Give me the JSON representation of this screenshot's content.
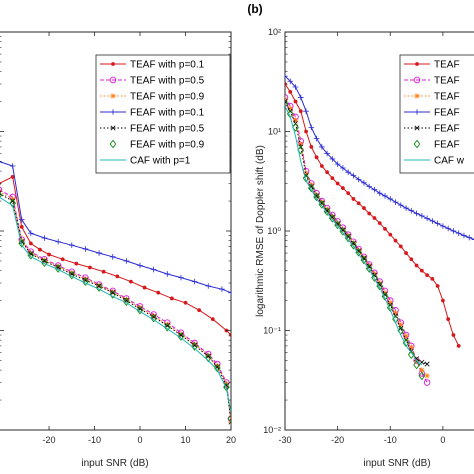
{
  "chart_data": [
    {
      "type": "line",
      "xlabel": "input SNR (dB)",
      "ylabel": "",
      "x_ticks": [
        "-20",
        "-10",
        "0",
        "10",
        "20"
      ],
      "xlim": [
        -31,
        20
      ],
      "ylog": true,
      "ylim": [
        0.01,
        100
      ],
      "grid": false,
      "legend_placement": "top-right",
      "series": [
        {
          "name": "TEAF with p=0.1",
          "color": "#d7191c",
          "marker": "dot",
          "line": "solid",
          "x": [
            -31,
            -28,
            -26,
            -24,
            -22,
            -20,
            -17,
            -14,
            -11,
            -8,
            -5,
            -2,
            1,
            4,
            7,
            10,
            13,
            16,
            19,
            20
          ],
          "y": [
            3,
            3.5,
            1.1,
            0.75,
            0.65,
            0.58,
            0.52,
            0.47,
            0.43,
            0.39,
            0.35,
            0.31,
            0.27,
            0.24,
            0.21,
            0.19,
            0.16,
            0.13,
            0.1,
            0.09
          ]
        },
        {
          "name": "TEAF with p=0.5",
          "color": "#d81bd8",
          "marker": "circle",
          "line": "dashed",
          "x": [
            -31,
            -28,
            -26,
            -24,
            -21,
            -18,
            -15,
            -12,
            -9,
            -6,
            -3,
            0,
            3,
            6,
            9,
            12,
            15,
            17,
            19,
            20
          ],
          "y": [
            2.6,
            2.2,
            0.82,
            0.62,
            0.52,
            0.45,
            0.39,
            0.34,
            0.29,
            0.25,
            0.21,
            0.175,
            0.145,
            0.12,
            0.095,
            0.075,
            0.058,
            0.046,
            0.03,
            0.013
          ]
        },
        {
          "name": "TEAF with p=0.9",
          "color": "#ff7f0e",
          "marker": "asterisk",
          "line": "dotted",
          "x": [
            -31,
            -28,
            -26,
            -24,
            -21,
            -18,
            -15,
            -12,
            -9,
            -6,
            -3,
            0,
            3,
            6,
            9,
            12,
            15,
            17,
            19,
            20
          ],
          "y": [
            2.5,
            2.1,
            0.8,
            0.6,
            0.51,
            0.44,
            0.38,
            0.33,
            0.285,
            0.245,
            0.205,
            0.17,
            0.14,
            0.115,
            0.092,
            0.073,
            0.056,
            0.044,
            0.029,
            0.012
          ]
        },
        {
          "name": "FEAF with p=0.1",
          "color": "#2b2bd6",
          "marker": "plus",
          "line": "solid",
          "x": [
            -31,
            -28,
            -26,
            -24,
            -21,
            -18,
            -15,
            -12,
            -9,
            -6,
            -3,
            0,
            3,
            6,
            9,
            12,
            15,
            18,
            20
          ],
          "y": [
            5,
            4.5,
            1.3,
            0.95,
            0.85,
            0.78,
            0.72,
            0.66,
            0.6,
            0.55,
            0.5,
            0.45,
            0.41,
            0.37,
            0.34,
            0.31,
            0.28,
            0.26,
            0.24
          ]
        },
        {
          "name": "FEAF with p=0.5",
          "color": "#000000",
          "marker": "cross",
          "line": "dotted",
          "x": [
            -31,
            -28,
            -26,
            -24,
            -21,
            -18,
            -15,
            -12,
            -9,
            -6,
            -3,
            0,
            3,
            6,
            9,
            12,
            15,
            17,
            19,
            20
          ],
          "y": [
            2.4,
            2.0,
            0.78,
            0.59,
            0.5,
            0.43,
            0.37,
            0.32,
            0.28,
            0.24,
            0.2,
            0.165,
            0.137,
            0.112,
            0.09,
            0.071,
            0.055,
            0.043,
            0.028,
            0.012
          ]
        },
        {
          "name": "FEAF with p=0.9",
          "color": "#138a13",
          "marker": "diamond",
          "line": "none",
          "x": [
            -31,
            -28,
            -26,
            -24,
            -21,
            -18,
            -15,
            -12,
            -9,
            -6,
            -3,
            0,
            3,
            6,
            9,
            12,
            15,
            17,
            19,
            20
          ],
          "y": [
            2.3,
            1.9,
            0.75,
            0.57,
            0.48,
            0.42,
            0.36,
            0.31,
            0.27,
            0.23,
            0.195,
            0.16,
            0.133,
            0.108,
            0.087,
            0.069,
            0.053,
            0.042,
            0.027,
            0.013
          ]
        },
        {
          "name": "CAF with p=1",
          "color": "#1fb8b0",
          "marker": "none",
          "line": "solid",
          "x": [
            -31,
            -28,
            -26,
            -24,
            -21,
            -18,
            -15,
            -12,
            -9,
            -6,
            -3,
            0,
            3,
            6,
            9,
            12,
            15,
            17,
            19,
            20
          ],
          "y": [
            2.2,
            1.8,
            0.72,
            0.55,
            0.47,
            0.41,
            0.35,
            0.3,
            0.26,
            0.22,
            0.19,
            0.155,
            0.128,
            0.104,
            0.084,
            0.066,
            0.05,
            0.04,
            0.026,
            0.015
          ]
        }
      ]
    },
    {
      "type": "line",
      "title": "(b)",
      "xlabel": "input SNR (dB)",
      "ylabel": "logarithmic RMSE of Doppler shift (dB)",
      "x_ticks": [
        "-30",
        "-20",
        "-10",
        "0"
      ],
      "xlim": [
        -30,
        8
      ],
      "ylog": true,
      "ylim": [
        0.01,
        100
      ],
      "y_ticks": [
        "10⁻²",
        "10⁻¹",
        "10⁰",
        "10¹",
        "10²"
      ],
      "grid": false,
      "legend_placement": "top-right",
      "legend_labels": [
        "TEAF",
        "TEAF",
        "TEAF",
        "FEAF",
        "FEAF",
        "FEAF",
        "CAF w"
      ],
      "series": [
        {
          "color": "#d7191c",
          "marker": "dot",
          "line": "solid",
          "x": [
            -30,
            -29,
            -28,
            -27,
            -26,
            -25,
            -24,
            -23,
            -22,
            -21,
            -20,
            -19,
            -18,
            -17,
            -16,
            -15,
            -14,
            -13,
            -12,
            -11,
            -10,
            -9,
            -8,
            -7,
            -6,
            -5,
            -4,
            -3,
            -2,
            -1,
            0,
            1,
            2,
            3
          ],
          "y": [
            30,
            25,
            20,
            16,
            10,
            7,
            5.5,
            4.5,
            3.9,
            3.4,
            3.0,
            2.7,
            2.4,
            2.1,
            1.9,
            1.7,
            1.5,
            1.35,
            1.2,
            1.05,
            0.92,
            0.8,
            0.7,
            0.6,
            0.52,
            0.45,
            0.4,
            0.36,
            0.33,
            0.28,
            0.2,
            0.13,
            0.09,
            0.07
          ]
        },
        {
          "color": "#d81bd8",
          "marker": "circle",
          "line": "dashed",
          "x": [
            -30,
            -29,
            -28,
            -27,
            -26,
            -25,
            -24,
            -23,
            -22,
            -21,
            -20,
            -19,
            -18,
            -17,
            -16,
            -15,
            -14,
            -13,
            -12,
            -11,
            -10,
            -9,
            -8,
            -7,
            -6,
            -5,
            -4,
            -3
          ],
          "y": [
            22,
            18,
            14,
            8,
            4,
            3,
            2.4,
            2.0,
            1.7,
            1.45,
            1.25,
            1.08,
            0.92,
            0.78,
            0.66,
            0.55,
            0.46,
            0.38,
            0.31,
            0.25,
            0.2,
            0.16,
            0.12,
            0.09,
            0.07,
            0.05,
            0.037,
            0.03
          ]
        },
        {
          "color": "#ff7f0e",
          "marker": "asterisk",
          "line": "dotted",
          "x": [
            -30,
            -29,
            -28,
            -27,
            -26,
            -25,
            -24,
            -23,
            -22,
            -21,
            -20,
            -19,
            -18,
            -17,
            -16,
            -15,
            -14,
            -13,
            -12,
            -11,
            -10,
            -9,
            -8,
            -7,
            -6,
            -5,
            -4,
            -3
          ],
          "y": [
            21,
            17,
            13,
            7.5,
            3.8,
            2.9,
            2.3,
            1.95,
            1.65,
            1.4,
            1.2,
            1.04,
            0.9,
            0.76,
            0.64,
            0.54,
            0.45,
            0.37,
            0.3,
            0.24,
            0.19,
            0.15,
            0.115,
            0.088,
            0.068,
            0.05,
            0.04,
            0.035
          ]
        },
        {
          "color": "#2b2bd6",
          "marker": "plus",
          "line": "solid",
          "x": [
            -30,
            -29,
            -28,
            -27,
            -26,
            -25,
            -24,
            -23,
            -22,
            -21,
            -20,
            -19,
            -18,
            -17,
            -16,
            -15,
            -14,
            -13,
            -12,
            -11,
            -10,
            -9,
            -8,
            -7,
            -6,
            -5,
            -4,
            -3,
            -2,
            -1,
            0,
            1,
            2,
            3,
            4,
            5,
            6,
            7,
            8
          ],
          "y": [
            36,
            32,
            28,
            22,
            16,
            11,
            8.5,
            7,
            6,
            5.3,
            4.7,
            4.3,
            3.9,
            3.6,
            3.3,
            3.05,
            2.8,
            2.6,
            2.4,
            2.25,
            2.1,
            1.95,
            1.82,
            1.7,
            1.6,
            1.5,
            1.42,
            1.34,
            1.26,
            1.19,
            1.12,
            1.06,
            1.0,
            0.95,
            0.9,
            0.86,
            0.82,
            0.78,
            0.75
          ]
        },
        {
          "color": "#000000",
          "marker": "cross",
          "line": "dotted",
          "x": [
            -30,
            -29,
            -28,
            -27,
            -26,
            -25,
            -24,
            -23,
            -22,
            -21,
            -20,
            -19,
            -18,
            -17,
            -16,
            -15,
            -14,
            -13,
            -12,
            -11,
            -10,
            -9,
            -8,
            -7,
            -6,
            -5,
            -4,
            -3
          ],
          "y": [
            20,
            16,
            12,
            7,
            3.6,
            2.8,
            2.25,
            1.9,
            1.6,
            1.37,
            1.18,
            1.02,
            0.88,
            0.75,
            0.63,
            0.53,
            0.44,
            0.36,
            0.29,
            0.23,
            0.18,
            0.14,
            0.105,
            0.08,
            0.062,
            0.052,
            0.048,
            0.046
          ]
        },
        {
          "color": "#138a13",
          "marker": "diamond",
          "line": "none",
          "x": [
            -30,
            -29,
            -28,
            -27,
            -26,
            -25,
            -24,
            -23,
            -22,
            -21,
            -20,
            -19,
            -18,
            -17,
            -16,
            -15,
            -14,
            -13,
            -12,
            -11,
            -10,
            -9,
            -8,
            -7,
            -6,
            -5,
            -4
          ],
          "y": [
            19,
            15,
            11,
            6.5,
            3.4,
            2.7,
            2.2,
            1.85,
            1.57,
            1.34,
            1.15,
            0.99,
            0.85,
            0.72,
            0.61,
            0.51,
            0.42,
            0.34,
            0.28,
            0.22,
            0.17,
            0.13,
            0.1,
            0.075,
            0.057,
            0.045,
            0.035
          ]
        },
        {
          "color": "#1fb8b0",
          "marker": "none",
          "line": "solid",
          "x": [
            -30,
            -29,
            -28,
            -27,
            -26,
            -25,
            -24,
            -23,
            -22,
            -21,
            -20,
            -19,
            -18,
            -17,
            -16,
            -15,
            -14,
            -13,
            -12,
            -11,
            -10,
            -9,
            -8,
            -7,
            -6,
            -5,
            -4
          ],
          "y": [
            18,
            14,
            9,
            5,
            3.2,
            2.6,
            2.1,
            1.8,
            1.52,
            1.3,
            1.12,
            0.96,
            0.82,
            0.7,
            0.59,
            0.49,
            0.41,
            0.33,
            0.27,
            0.21,
            0.16,
            0.12,
            0.09,
            0.07,
            0.06,
            0.05,
            0.045
          ]
        }
      ]
    }
  ]
}
